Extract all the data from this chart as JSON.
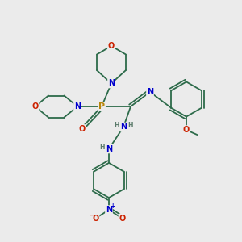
{
  "bg_color": "#ebebeb",
  "bond_color": "#2d6b4a",
  "N_color": "#0000cc",
  "O_color": "#cc2200",
  "P_color": "#b8860b",
  "H_color": "#5a7a6a",
  "line_width": 1.3,
  "figsize": [
    3.0,
    3.0
  ],
  "dpi": 100,
  "xlim": [
    0,
    10
  ],
  "ylim": [
    0,
    10
  ]
}
